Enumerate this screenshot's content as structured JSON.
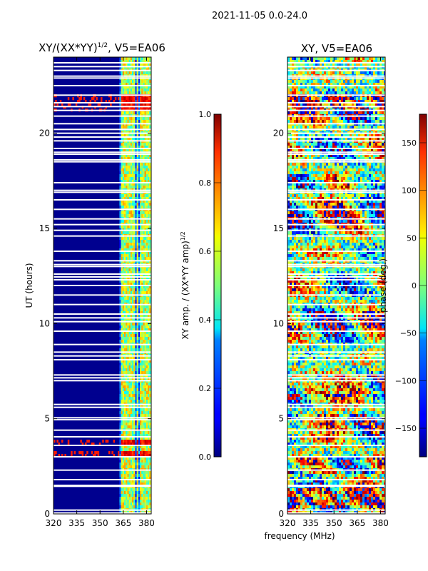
{
  "suptitle": "2021-11-05 0.0-24.0",
  "chart_data": [
    {
      "type": "heatmap",
      "title_prefix": "XY/(XX*YY)",
      "title_exp": "1/2",
      "title_suffix": ", V5=EA06",
      "xlabel": "",
      "ylabel": "UT (hours)",
      "xlim": [
        320,
        383
      ],
      "ylim": [
        0,
        24
      ],
      "xticks": [
        320,
        335,
        350,
        365,
        380
      ],
      "yticks": [
        0,
        5,
        10,
        15,
        20
      ],
      "colorbar": {
        "label_main": "XY amp. / (XX*YY amp)",
        "label_exp": "1/2",
        "range": [
          0.0,
          1.0
        ],
        "ticks": [
          "0.0",
          "0.2",
          "0.4",
          "0.6",
          "0.8",
          "1.0"
        ],
        "tick_values": [
          0.0,
          0.2,
          0.4,
          0.6,
          0.8,
          1.0
        ]
      }
    },
    {
      "type": "heatmap",
      "title": "XY, V5=EA06",
      "xlabel": "frequency (MHz)",
      "ylabel": "",
      "xlim": [
        320,
        383
      ],
      "ylim": [
        0,
        24
      ],
      "xticks": [
        320,
        335,
        350,
        365,
        380
      ],
      "yticks": [
        0,
        5,
        10,
        15,
        20
      ],
      "colorbar": {
        "label": "phase (deg.)",
        "range": [
          -180,
          180
        ],
        "ticks": [
          "150",
          "100",
          "50",
          "0",
          "−50",
          "−100",
          "−150"
        ],
        "tick_values": [
          150,
          100,
          50,
          0,
          -50,
          -100,
          -150
        ]
      }
    }
  ],
  "flagged_rows_ut": [
    0.05,
    0.2,
    1.45,
    1.5,
    1.8,
    2.3,
    3.0,
    3.6,
    4.05,
    4.4,
    4.95,
    5.05,
    5.6,
    5.75,
    7.0,
    7.15,
    7.3,
    8.1,
    8.3,
    8.5,
    8.9,
    9.6,
    10.1,
    10.3,
    10.5,
    11.0,
    11.5,
    12.0,
    12.3,
    12.45,
    12.6,
    13.0,
    13.1,
    13.3,
    13.8,
    14.6,
    14.9,
    15.2,
    15.5,
    16.0,
    16.5,
    16.9,
    17.0,
    17.4,
    18.5,
    18.6,
    18.9,
    19.0,
    19.2,
    19.6,
    19.8,
    20.0,
    20.2,
    20.5,
    20.9,
    21.2,
    21.4,
    21.6,
    22.0,
    22.5,
    22.9,
    23.0,
    23.3,
    23.5,
    23.7
  ],
  "amp_bright_channels_mhz": [
    364,
    365.5,
    367,
    369,
    371,
    373.5,
    376,
    378,
    380,
    382
  ],
  "amp_hot_rows_ut": [
    3.2,
    3.8,
    21.3,
    21.5,
    21.7,
    22.0
  ],
  "phase_band_rows_ut": [
    1.0,
    2.6,
    4.8,
    6.9,
    17.5,
    21.7
  ]
}
